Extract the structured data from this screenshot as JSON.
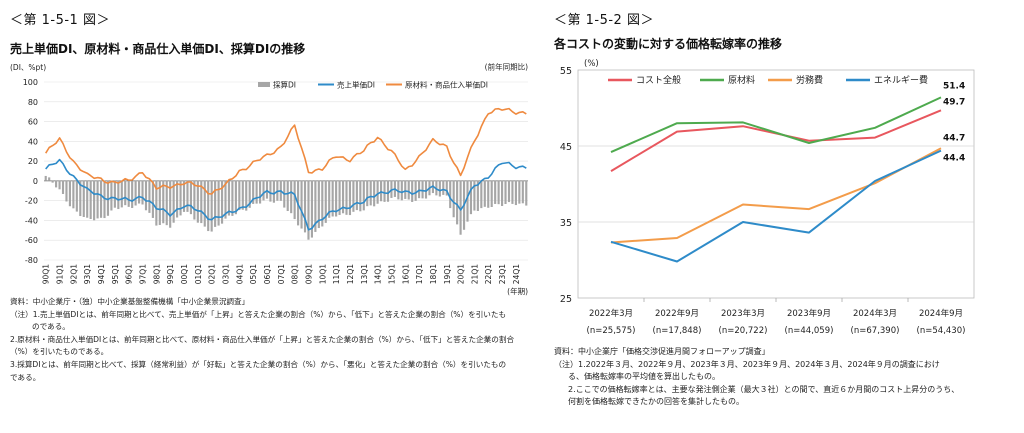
{
  "left": {
    "figure_no": "＜第 1-5-1 図＞",
    "title": "売上単価DI、原材料・商品仕入単価DI、採算DIの推移",
    "notes": [
      "資料：中小企業庁・（独）中小企業基盤整備機構「中小企業景況調査」",
      "（注）1.売上単価DIとは、前年同期と比べて、売上単価が「上昇」と答えた企業の割合（%）から、「低下」と答えた企業の割合（%）を引いたも",
      "のである。",
      "2.原材料・商品仕入単価DIとは、前年同期と比べて、原材料・商品仕入単価が「上昇」と答えた企業の割合（%）から、「低下」と答えた企業の割合",
      "（%）を引いたものである。",
      "3.採算DIとは、前年同期と比べて、採算（経常利益）が「好転」と答えた企業の割合（%）から、「悪化」と答えた企業の割合（%）を引いたもの",
      "である。"
    ]
  },
  "right": {
    "figure_no": "＜第 1-5-2 図＞",
    "title": "各コストの変動に対する価格転嫁率の推移",
    "notes": [
      "資料：中小企業庁「価格交渉促進月間フォローアップ調査」",
      "（注）1.2022年３月、2022年９月、2023年３月、2023年９月、2024年３月、2024年９月の調査におけ",
      "る、価格転嫁率の平均値を算出したもの。",
      "2.ここでの価格転嫁率とは、主要な発注側企業（最大３社）との間で、直近６か月間のコスト上昇分のうち、",
      "何割を価格転嫁できたかの回答を集計したもの。"
    ]
  },
  "chart_data": [
    {
      "type": "bar+line",
      "title": "売上単価DI、原材料・商品仕入単価DI、採算DIの推移",
      "ylabel": "(DI、%pt)",
      "top_right_note": "(前年同期比)",
      "xlabel": "(年期)",
      "ylim": [
        -80,
        100
      ],
      "yticks": [
        -80,
        -60,
        -40,
        -20,
        0,
        20,
        40,
        60,
        80,
        100
      ],
      "xticks": [
        "90Q1",
        "91Q1",
        "92Q1",
        "93Q1",
        "94Q1",
        "95Q1",
        "96Q1",
        "97Q1",
        "98Q1",
        "99Q1",
        "00Q1",
        "01Q1",
        "02Q1",
        "03Q1",
        "04Q1",
        "05Q1",
        "06Q1",
        "07Q1",
        "08Q1",
        "09Q1",
        "10Q1",
        "11Q1",
        "12Q1",
        "13Q1",
        "14Q1",
        "15Q1",
        "16Q1",
        "17Q1",
        "18Q1",
        "19Q1",
        "20Q1",
        "21Q1",
        "22Q1",
        "23Q1",
        "24Q1"
      ],
      "legend": [
        "採算DI",
        "売上単価DI",
        "原材料・商品仕入単価DI"
      ],
      "legend_position": "top",
      "colors": {
        "bars": "#a6a6a6",
        "sales": "#2e8bc9",
        "materials": "#ef8a3f"
      },
      "annual_anchors": {
        "saisan": [
          5,
          -10,
          -28,
          -40,
          -38,
          -28,
          -27,
          -22,
          -45,
          -45,
          -30,
          -42,
          -50,
          -40,
          -30,
          -25,
          -20,
          -20,
          -40,
          -58,
          -45,
          -35,
          -32,
          -30,
          -22,
          -18,
          -20,
          -18,
          -15,
          -15,
          -55,
          -30,
          -25,
          -25,
          -22,
          -24
        ],
        "sales": [
          12,
          20,
          5,
          -10,
          -15,
          -18,
          -20,
          -15,
          -28,
          -33,
          -25,
          -30,
          -38,
          -35,
          -28,
          -20,
          -12,
          -10,
          -15,
          -48,
          -38,
          -30,
          -25,
          -22,
          -12,
          -10,
          -12,
          -10,
          -8,
          -10,
          -30,
          -5,
          5,
          18,
          15,
          14
        ],
        "materials": [
          28,
          42,
          20,
          5,
          2,
          -2,
          0,
          10,
          -8,
          -5,
          -2,
          -5,
          -12,
          -5,
          10,
          18,
          25,
          35,
          55,
          10,
          12,
          25,
          22,
          30,
          45,
          30,
          10,
          25,
          40,
          35,
          5,
          40,
          70,
          72,
          70,
          69
        ]
      }
    },
    {
      "type": "line",
      "title": "各コストの変動に対する価格転嫁率の推移",
      "ylabel": "(%)",
      "ylim": [
        25,
        55
      ],
      "yticks": [
        25,
        35,
        45,
        55
      ],
      "categories": [
        "2022年3月",
        "2022年9月",
        "2023年3月",
        "2023年9月",
        "2024年3月",
        "2024年9月"
      ],
      "sub_categories": [
        "(n=25,575)",
        "(n=17,848)",
        "(n=20,722)",
        "(n=44,059)",
        "(n=67,390)",
        "(n=54,430)"
      ],
      "legend_position": "top-left",
      "series": [
        {
          "name": "コスト全般",
          "color": "#e8575e",
          "values": [
            41.7,
            46.9,
            47.6,
            45.7,
            46.1,
            49.7
          ]
        },
        {
          "name": "原材料",
          "color": "#4eaa4e",
          "values": [
            44.2,
            48.0,
            48.1,
            45.4,
            47.4,
            51.4
          ]
        },
        {
          "name": "労務費",
          "color": "#f39c4a",
          "values": [
            32.3,
            32.9,
            37.3,
            36.7,
            40.1,
            44.7
          ]
        },
        {
          "name": "エネルギー費",
          "color": "#2e8bc9",
          "values": [
            32.4,
            29.8,
            35.0,
            33.6,
            40.4,
            44.4
          ]
        }
      ],
      "end_labels": [
        "51.4",
        "49.7",
        "44.7",
        "44.4"
      ]
    }
  ]
}
